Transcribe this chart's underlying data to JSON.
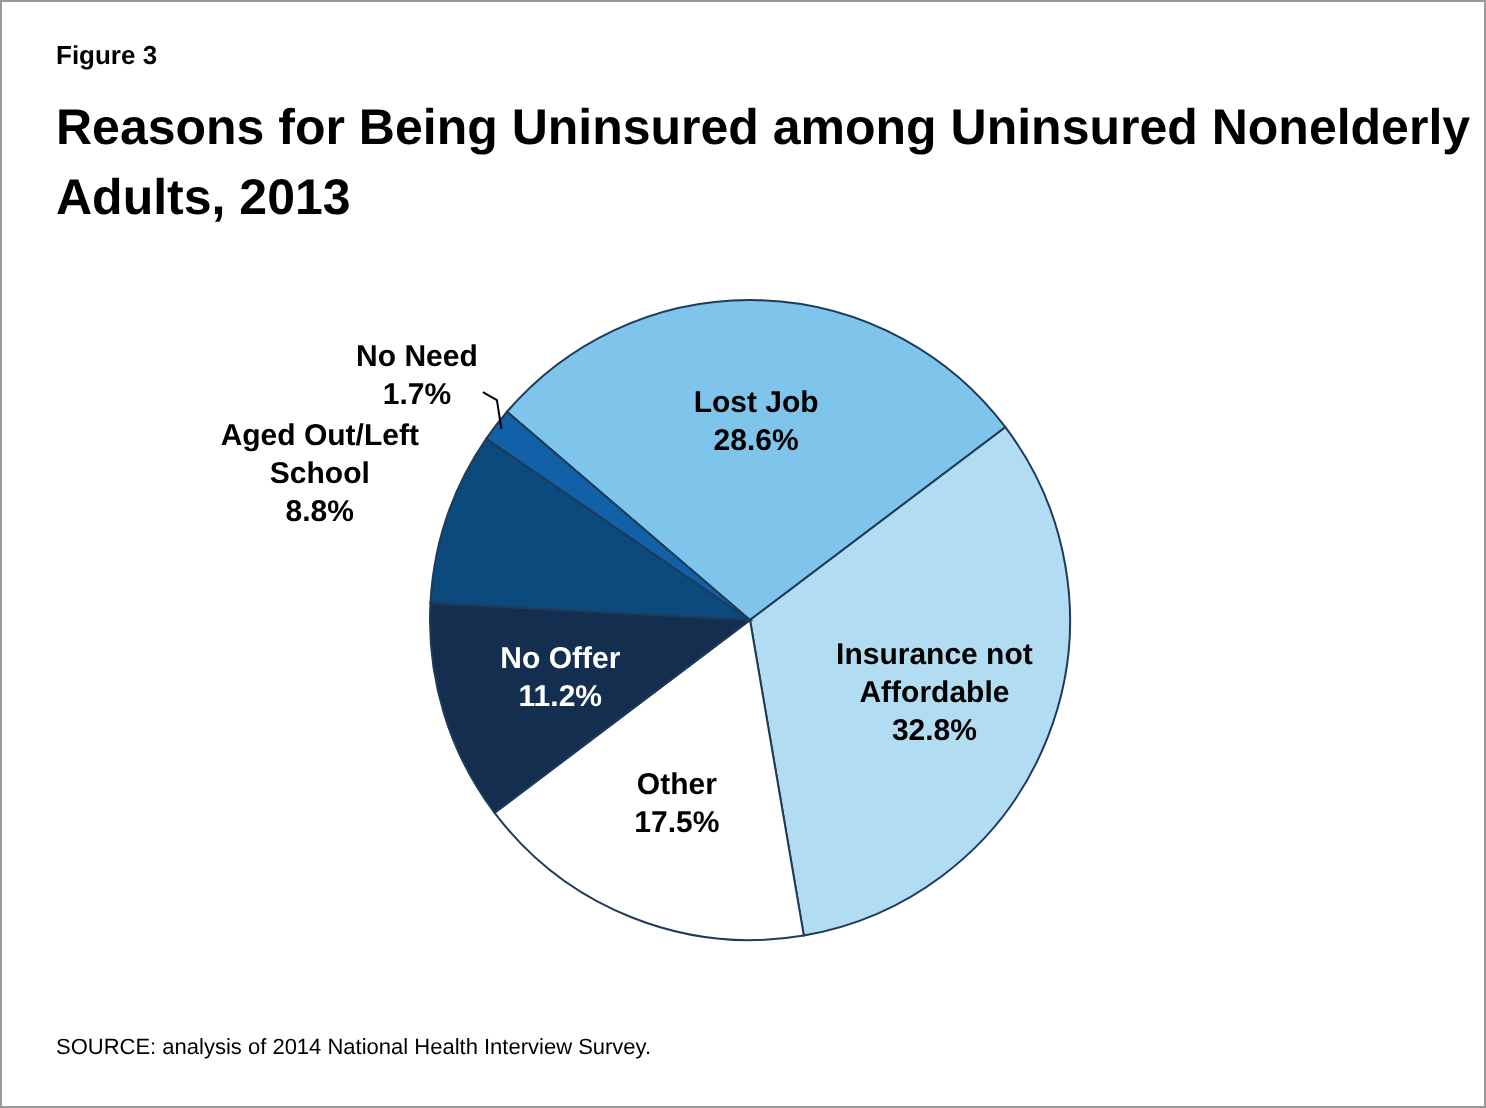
{
  "chart_data": {
    "type": "pie",
    "title": "Reasons for Being Uninsured among Uninsured Nonelderly Adults, 2013",
    "annotations": [
      "Figure 3",
      "SOURCE: analysis of 2014 National Health Interview Survey."
    ],
    "categories": [
      "Lost Job",
      "Insurance not Affordable",
      "Other",
      "No Offer",
      "Aged Out/Left School",
      "No Need"
    ],
    "values": [
      28.6,
      32.8,
      17.5,
      11.2,
      8.8,
      1.7
    ],
    "colors": [
      "#7fc5eb",
      "#b2dcf2",
      "#ffffff",
      "#132e4f",
      "#0c4a7d",
      "#1261a8"
    ],
    "value_labels": [
      "28.6%",
      "32.8%",
      "17.5%",
      "11.2%",
      "8.8%",
      "1.7%"
    ],
    "data_labels": true
  }
}
